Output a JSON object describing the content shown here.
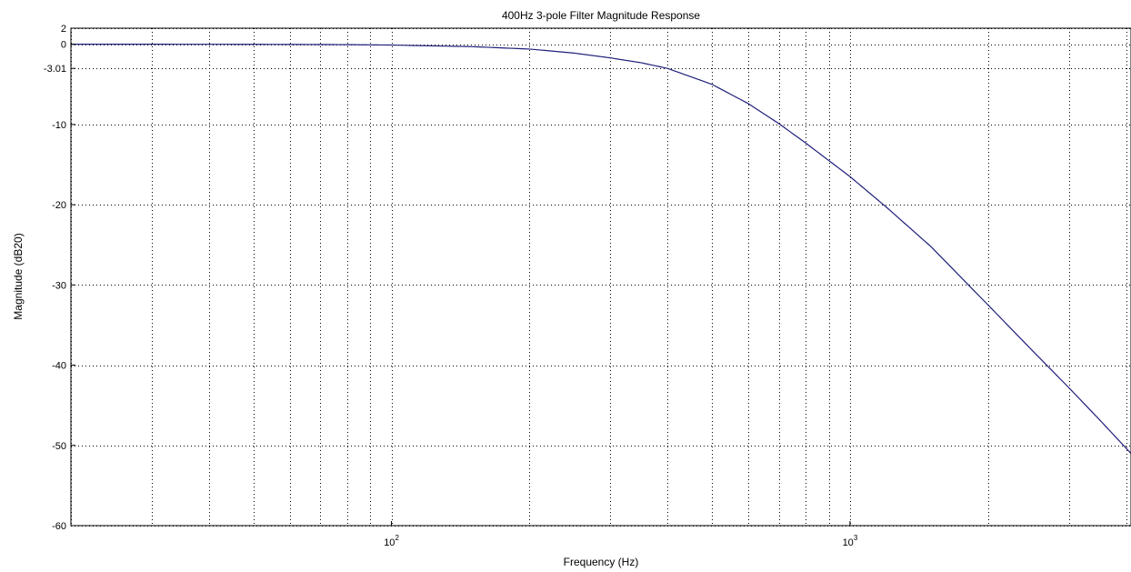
{
  "chart_data": {
    "type": "line",
    "title": "400Hz 3-pole Filter Magnitude Response",
    "xlabel": "Frequency (Hz)",
    "ylabel": "Magnitude (dB20)",
    "x_scale": "log",
    "xlim": [
      20,
      4100
    ],
    "ylim": [
      -60,
      2
    ],
    "grid": true,
    "grid_style": "dotted",
    "line_color": "#1f1f7a",
    "x_ticks": [
      {
        "value": 100,
        "base": "10",
        "exponent": "2"
      },
      {
        "value": 1000,
        "base": "10",
        "exponent": "3"
      }
    ],
    "y_ticks": [
      {
        "value": 2,
        "label": "2"
      },
      {
        "value": 0,
        "label": "0"
      },
      {
        "value": -3.01,
        "label": "-3.01"
      },
      {
        "value": -10,
        "label": "-10"
      },
      {
        "value": -20,
        "label": "-20"
      },
      {
        "value": -30,
        "label": "-30"
      },
      {
        "value": -40,
        "label": "-40"
      },
      {
        "value": -50,
        "label": "-50"
      },
      {
        "value": -60,
        "label": "-60"
      }
    ],
    "series": [
      {
        "x": [
          20,
          30,
          50,
          80,
          100,
          150,
          200,
          250,
          300,
          350,
          400,
          500,
          600,
          700,
          800,
          1000,
          1200,
          1500,
          2000,
          2500,
          3000,
          3500,
          4100
        ],
        "y": [
          0,
          0,
          -0.01,
          -0.05,
          -0.1,
          -0.3,
          -0.6,
          -1.1,
          -1.7,
          -2.3,
          -3.01,
          -5.0,
          -7.4,
          -9.9,
          -12.3,
          -16.5,
          -20.3,
          -25.2,
          -32.5,
          -38.2,
          -42.8,
          -46.8,
          -51.0
        ]
      }
    ]
  }
}
